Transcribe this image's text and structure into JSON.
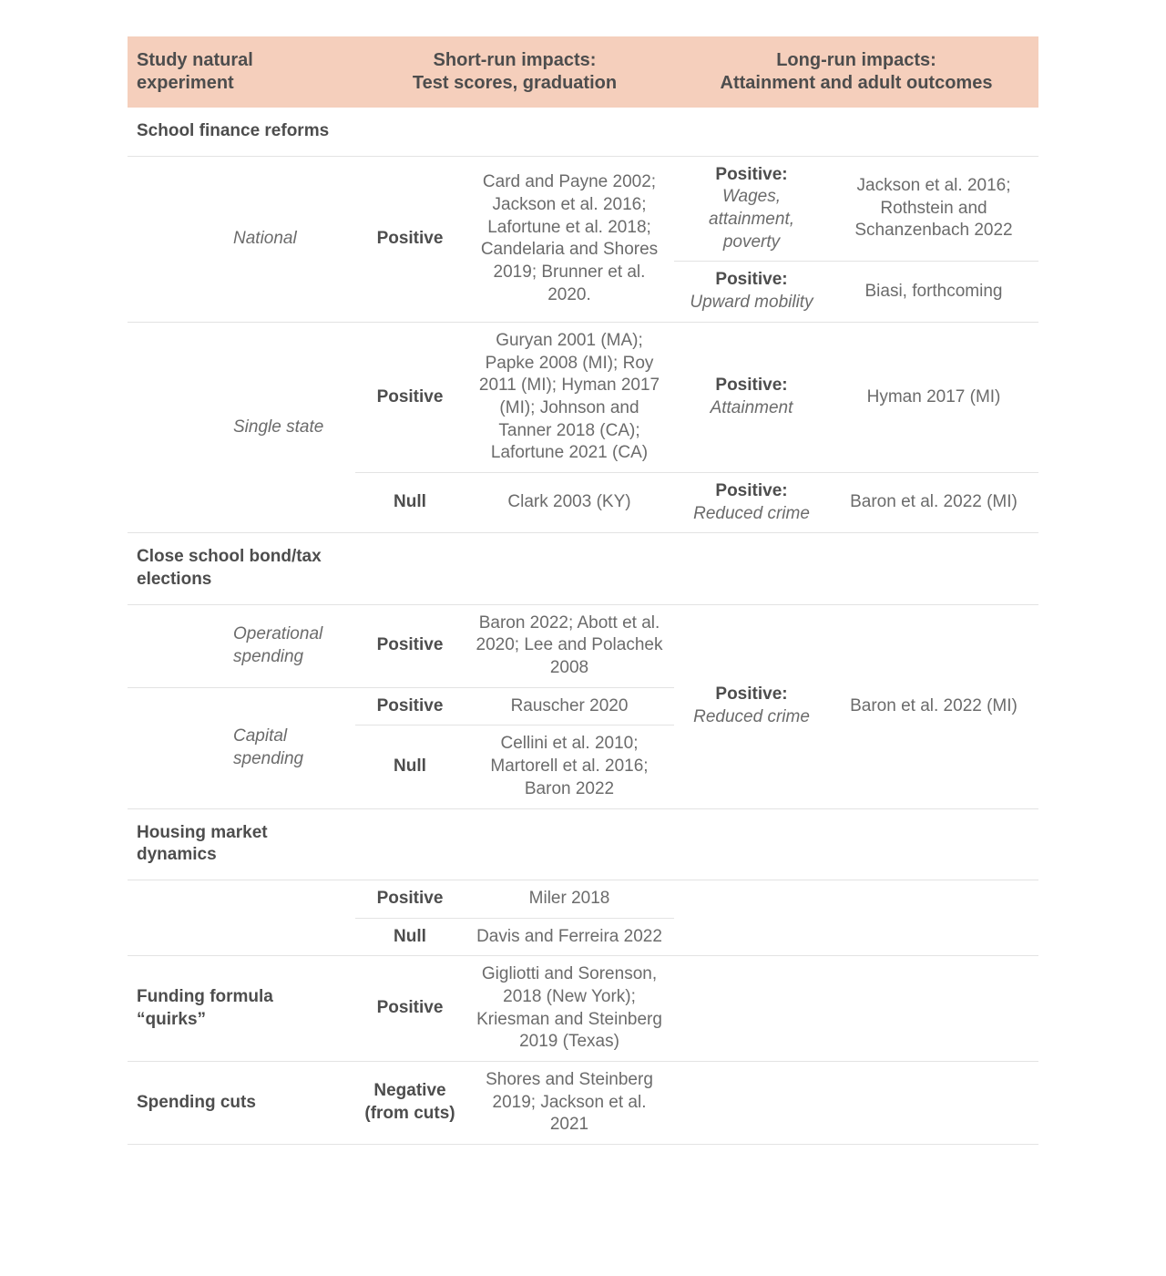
{
  "colors": {
    "header_bg": "#f5cfbc",
    "text_primary": "#4d4d4d",
    "text_secondary": "#6b6b6b",
    "rule": "#e3e3e3",
    "background": "#ffffff"
  },
  "typography": {
    "header_fontsize_pt": 15,
    "body_fontsize_pt": 14,
    "font_family": "Arial"
  },
  "table": {
    "type": "table",
    "column_widths_pct": [
      11,
      14,
      12,
      23,
      17,
      23
    ],
    "headers": {
      "col1": "Study natural experiment",
      "col2": "Short-run impacts:\nTest scores, graduation",
      "col3": "Long-run impacts:\nAttainment and adult outcomes"
    }
  },
  "sections": {
    "sfr": {
      "title": "School finance reforms",
      "national": {
        "label": "National",
        "short_result": "Positive",
        "short_cites": "Card and Payne 2002; Jackson et al. 2016; Lafortune et al. 2018; Candelaria and Shores 2019; Brunner et al. 2020.",
        "long1_label": "Positive:",
        "long1_sub": "Wages, attainment, poverty",
        "long1_cites": "Jackson et al. 2016; Rothstein and Schanzenbach 2022",
        "long2_label": "Positive:",
        "long2_sub": "Upward mobility",
        "long2_cites": "Biasi, forthcoming"
      },
      "single_state": {
        "label": "Single state",
        "row1_short_result": "Positive",
        "row1_short_cites": "Guryan 2001 (MA); Papke 2008 (MI); Roy 2011 (MI); Hyman 2017 (MI); Johnson and Tanner 2018 (CA); Lafortune 2021 (CA)",
        "row1_long_label": "Positive:",
        "row1_long_sub": "Attainment",
        "row1_long_cites": "Hyman 2017 (MI)",
        "row2_short_result": "Null",
        "row2_short_cites": "Clark 2003 (KY)",
        "row2_long_label": "Positive:",
        "row2_long_sub": "Reduced crime",
        "row2_long_cites": "Baron et al. 2022 (MI)"
      }
    },
    "elections": {
      "title": "Close school bond/tax elections",
      "operational": {
        "label": "Operational spending",
        "short_result": "Positive",
        "short_cites": "Baron 2022; Abott et al. 2020; Lee and Polachek 2008"
      },
      "capital": {
        "label": "Capital spending",
        "row1_short_result": "Positive",
        "row1_short_cites": "Rauscher 2020",
        "row2_short_result": "Null",
        "row2_short_cites": "Cellini et al. 2010; Martorell et al. 2016; Baron 2022",
        "long_label": "Positive:",
        "long_sub": "Reduced crime",
        "long_cites": "Baron et al. 2022 (MI)"
      }
    },
    "housing": {
      "title": "Housing market dynamics",
      "row1_short_result": "Positive",
      "row1_short_cites": "Miler 2018",
      "row2_short_result": "Null",
      "row2_short_cites": "Davis and Ferreira 2022"
    },
    "quirks": {
      "title": "Funding formula “quirks”",
      "short_result": "Positive",
      "short_cites": "Gigliotti and Sorenson, 2018 (New York); Kriesman and Steinberg 2019 (Texas)"
    },
    "cuts": {
      "title": "Spending cuts",
      "short_result": "Negative (from cuts)",
      "short_cites": "Shores and Steinberg 2019; Jackson et al. 2021"
    }
  }
}
